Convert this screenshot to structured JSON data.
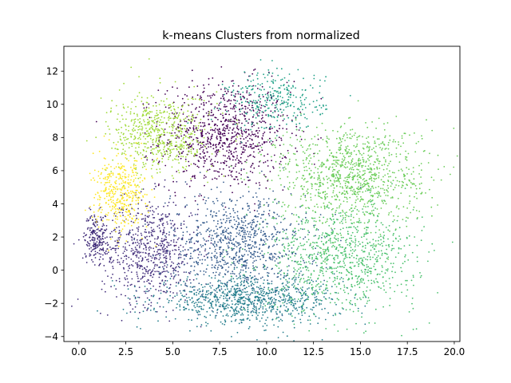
{
  "chart_data": {
    "type": "scatter",
    "title": "k-means Clusters from normalized",
    "xlabel": "",
    "ylabel": "",
    "xlim": [
      -0.8,
      20.3
    ],
    "ylim": [
      -4.3,
      13.5
    ],
    "xticks": [
      0.0,
      2.5,
      5.0,
      7.5,
      10.0,
      12.5,
      15.0,
      17.5,
      20.0
    ],
    "xtick_labels": [
      "0.0",
      "2.5",
      "5.0",
      "7.5",
      "10.0",
      "12.5",
      "15.0",
      "17.5",
      "20.0"
    ],
    "yticks": [
      -4,
      -2,
      0,
      2,
      4,
      6,
      8,
      10,
      12
    ],
    "ytick_labels": [
      "−4",
      "−2",
      "0",
      "2",
      "4",
      "6",
      "8",
      "10",
      "12"
    ],
    "grid": false,
    "legend": "none",
    "colormap": "viridis",
    "clusters": [
      {
        "color": "#440154",
        "center": [
          7.8,
          8.2
        ],
        "spread": [
          1.7,
          1.6
        ],
        "points": 900
      },
      {
        "color": "#46327e",
        "center": [
          3.8,
          1.2
        ],
        "spread": [
          1.3,
          1.6
        ],
        "points": 700
      },
      {
        "color": "#3f2a78",
        "center": [
          0.9,
          2.0
        ],
        "spread": [
          0.3,
          0.7
        ],
        "points": 180
      },
      {
        "color": "#365c8d",
        "center": [
          8.5,
          1.5
        ],
        "spread": [
          1.8,
          1.6
        ],
        "points": 900
      },
      {
        "color": "#277f8e",
        "center": [
          9.0,
          -1.8
        ],
        "spread": [
          2.4,
          0.7
        ],
        "points": 900
      },
      {
        "color": "#1fa187",
        "center": [
          10.5,
          10.2
        ],
        "spread": [
          1.3,
          0.9
        ],
        "points": 300
      },
      {
        "color": "#4ac16d",
        "center": [
          14.0,
          0.8
        ],
        "spread": [
          2.0,
          1.6
        ],
        "points": 900
      },
      {
        "color": "#6ccd5a",
        "center": [
          14.5,
          5.8
        ],
        "spread": [
          2.0,
          1.5
        ],
        "points": 1000
      },
      {
        "color": "#a0da39",
        "center": [
          4.3,
          8.2
        ],
        "spread": [
          1.3,
          1.2
        ],
        "points": 600
      },
      {
        "color": "#fde725",
        "center": [
          2.2,
          4.6
        ],
        "spread": [
          0.7,
          1.1
        ],
        "points": 400
      }
    ]
  }
}
